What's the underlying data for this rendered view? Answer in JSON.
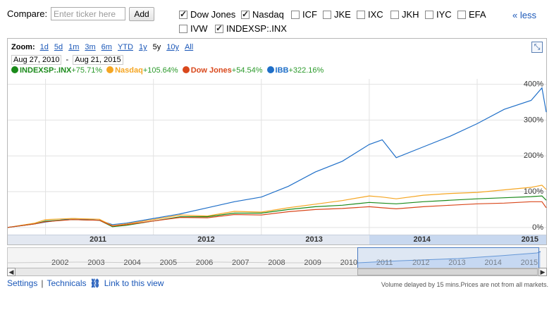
{
  "compare": {
    "label": "Compare:",
    "placeholder": "Enter ticker here",
    "add_label": "Add",
    "less_label": "« less",
    "checkboxes": [
      {
        "label": "Dow Jones",
        "checked": true
      },
      {
        "label": "Nasdaq",
        "checked": true
      },
      {
        "label": "ICF",
        "checked": false
      },
      {
        "label": "JKE",
        "checked": false
      },
      {
        "label": "IXC",
        "checked": false
      },
      {
        "label": "JKH",
        "checked": false
      },
      {
        "label": "IYC",
        "checked": false
      },
      {
        "label": "EFA",
        "checked": false
      },
      {
        "label": "IVW",
        "checked": false
      },
      {
        "label": "INDEXSP:.INX",
        "checked": true
      }
    ]
  },
  "zoom": {
    "label": "Zoom:",
    "options": [
      "1d",
      "5d",
      "1m",
      "3m",
      "6m",
      "YTD",
      "1y",
      "5y",
      "10y",
      "All"
    ],
    "selected": "5y"
  },
  "date_range": {
    "start": "Aug 27, 2010",
    "sep": "-",
    "end": "Aug 21, 2015"
  },
  "legend": [
    {
      "name": "INDEXSP:.INX",
      "change": "+75.71%",
      "color": "#1a8a1a"
    },
    {
      "name": "Nasdaq",
      "change": "+105.64%",
      "color": "#f5a623"
    },
    {
      "name": "Dow Jones",
      "change": "+54.54%",
      "color": "#d9481c"
    },
    {
      "name": "IBB",
      "change": "+322.16%",
      "color": "#1f6fc8"
    }
  ],
  "chart_data": {
    "type": "line",
    "x": [
      2010.65,
      2010.9,
      2011.0,
      2011.25,
      2011.5,
      2011.62,
      2011.75,
      2012.0,
      2012.25,
      2012.5,
      2012.75,
      2013.0,
      2013.25,
      2013.5,
      2013.75,
      2014.0,
      2014.12,
      2014.25,
      2014.5,
      2014.75,
      2015.0,
      2015.25,
      2015.5,
      2015.6,
      2015.64
    ],
    "series": [
      {
        "name": "IBB",
        "color": "#1f6fc8",
        "values": [
          0,
          10,
          15,
          25,
          20,
          8,
          12,
          25,
          38,
          55,
          72,
          85,
          115,
          155,
          185,
          232,
          245,
          195,
          225,
          255,
          290,
          330,
          355,
          390,
          322
        ]
      },
      {
        "name": "Nasdaq",
        "color": "#f5a623",
        "values": [
          0,
          12,
          22,
          25,
          23,
          5,
          10,
          22,
          35,
          32,
          45,
          43,
          55,
          65,
          75,
          88,
          85,
          80,
          90,
          95,
          98,
          105,
          112,
          118,
          106
        ]
      },
      {
        "name": "INDEXSP:.INX",
        "color": "#1a8a1a",
        "values": [
          0,
          10,
          18,
          22,
          20,
          2,
          6,
          18,
          30,
          30,
          40,
          40,
          50,
          58,
          62,
          70,
          68,
          66,
          72,
          76,
          80,
          83,
          86,
          88,
          76
        ]
      },
      {
        "name": "Dow Jones",
        "color": "#d9481c",
        "values": [
          0,
          10,
          16,
          22,
          20,
          4,
          8,
          18,
          28,
          27,
          36,
          35,
          44,
          50,
          53,
          58,
          55,
          52,
          58,
          62,
          66,
          68,
          72,
          72,
          55
        ]
      }
    ],
    "y_ticks": [
      "0%",
      "100%",
      "200%",
      "300%",
      "400%"
    ],
    "ylim": [
      -20,
      415
    ],
    "x_year_labels": [
      "2011",
      "2012",
      "2013",
      "2014",
      "2015"
    ],
    "grid": true
  },
  "navigator": {
    "years": [
      "2002",
      "2003",
      "2004",
      "2005",
      "2006",
      "2007",
      "2008",
      "2009",
      "2010",
      "2011",
      "2012",
      "2013",
      "2014",
      "2015"
    ]
  },
  "footer": {
    "settings": "Settings",
    "sep": "|",
    "technicals": "Technicals",
    "link_view": "Link to this view",
    "disclaimer": "Volume delayed by 15 mins.Prices are not from all markets."
  }
}
